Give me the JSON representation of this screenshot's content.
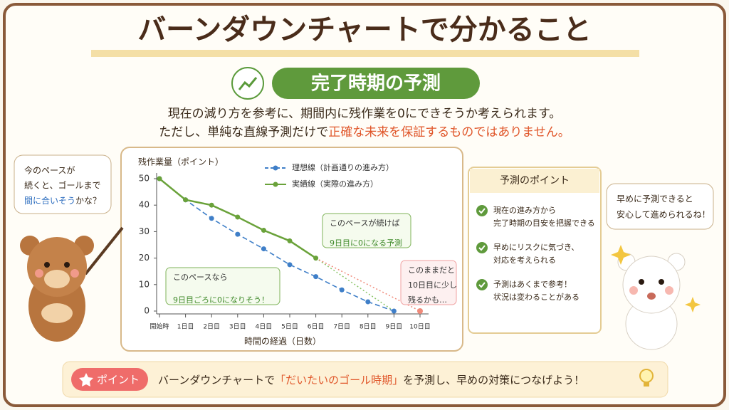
{
  "header": {
    "title": "バーンダウンチャートで分かること",
    "badge": "完了時期の予測"
  },
  "intro": {
    "line1": "現在の減り方を参考に、期間内に残作業を0にできそうか考えられます。",
    "line2_start": "ただし、単純な直線予測だけで",
    "line2_emph": "正確な未来を保証するものではありません。"
  },
  "left_bubble": {
    "line1": "今のペースが",
    "line2": "続くと、ゴールまで",
    "line3_emph": "間に合いそう",
    "line3_rest": "かな？"
  },
  "right_bubble": {
    "line1": "早めに予測できると",
    "line2": "安心して進められるね！"
  },
  "points": {
    "title": "予測のポイント",
    "items": [
      [
        "現在の進み方から",
        "完了時期の目安を把握できる"
      ],
      [
        "早めにリスクに気づき、",
        "対応を考えられる"
      ],
      [
        "予測はあくまで参考！",
        "状況は変わることがある"
      ]
    ]
  },
  "footer": {
    "badge": "ポイント",
    "text_start": "バーンダウンチャートで",
    "emph": "「だいたいのゴール時期」",
    "text_end": "を予測し、早めの対策につなげよう！"
  },
  "chart_data": {
    "type": "line",
    "y_label": "残作業量（ポイント）",
    "x_label": "時間の経過（日数）",
    "categories": [
      "開始時",
      "1日目",
      "2日目",
      "3日目",
      "4日目",
      "5日目",
      "6日目",
      "7日目",
      "8日目",
      "9日目",
      "10日目"
    ],
    "series": [
      {
        "name": "理想線（計画通りの進み方）",
        "color": "#3f7fc8",
        "dashed": true,
        "values": [
          50,
          42,
          35,
          29,
          23.5,
          17.5,
          13,
          8,
          3.5,
          0,
          null
        ]
      },
      {
        "name": "実績線（実際の進み方）",
        "color": "#6aa23a",
        "dashed": false,
        "values": [
          50,
          42,
          40,
          35.5,
          30.5,
          26.5,
          20,
          null,
          null,
          null,
          null
        ]
      }
    ],
    "projections": [
      {
        "color": "#8cc56a",
        "x": [
          6,
          9
        ],
        "values": [
          20,
          0
        ]
      },
      {
        "color": "#f08a7a",
        "x": [
          6,
          10
        ],
        "values": [
          20,
          0
        ]
      }
    ],
    "ylim": [
      0,
      50
    ],
    "yticks": [
      0,
      10,
      20,
      30,
      40,
      50
    ],
    "annotations": [
      {
        "lines": [
          "このペースが続けば",
          "9日目に0になる予測"
        ]
      },
      {
        "lines": [
          "このペースなら",
          "9日目ごろに0になりそう！"
        ]
      },
      {
        "lines": [
          "このままだと",
          "10日目に少し",
          "残るかも…"
        ]
      }
    ]
  }
}
